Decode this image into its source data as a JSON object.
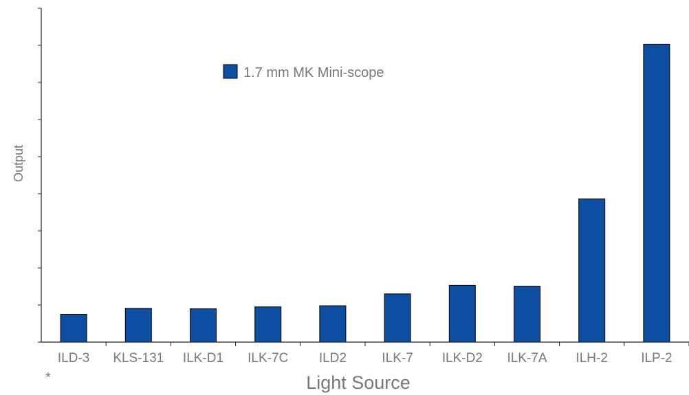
{
  "chart_data": {
    "type": "bar",
    "title": "",
    "xlabel": "Light Source",
    "ylabel": "Output",
    "categories": [
      "ILD-3",
      "KLS-131",
      "ILK-D1",
      "ILK-7C",
      "ILD2",
      "ILK-7",
      "ILK-D2",
      "ILK-7A",
      "ILH-2",
      "ILP-2"
    ],
    "series": [
      {
        "name": "1.7 mm MK Mini-scope",
        "values": [
          0.75,
          0.91,
          0.9,
          0.95,
          0.98,
          1.3,
          1.53,
          1.51,
          3.86,
          8.03
        ]
      }
    ],
    "ylim": [
      0,
      9
    ],
    "y_tick_step": 1,
    "y_tick_labels_shown": false,
    "grid": false,
    "legend_position": "top-center",
    "bar_color": "#0b4ea2",
    "footnote": "*"
  }
}
